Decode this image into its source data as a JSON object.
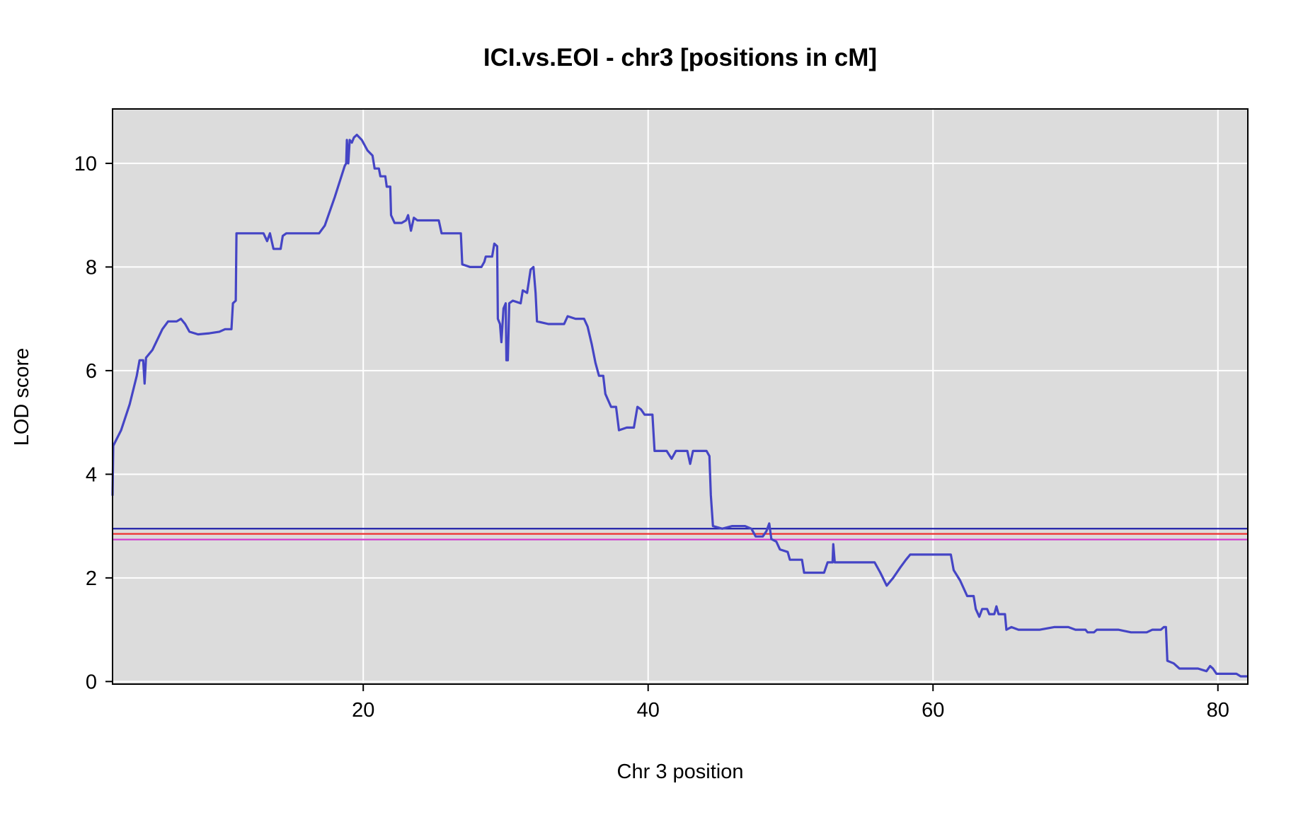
{
  "chart_data": {
    "type": "line",
    "title": "ICI.vs.EOI - chr3 [positions in cM]",
    "xlabel": "Chr 3 position",
    "ylabel": "LOD score",
    "xlim": [
      2.4,
      82.1
    ],
    "ylim": [
      -0.05,
      11.05
    ],
    "xticks": [
      20,
      40,
      60,
      80
    ],
    "yticks": [
      0,
      2,
      4,
      6,
      8,
      10
    ],
    "grid": true,
    "panel_bg": "#dcdcdc",
    "grid_color": "#ffffff",
    "series": [
      {
        "name": "LOD",
        "color": "#4545c5",
        "points": [
          [
            2.4,
            3.6
          ],
          [
            2.45,
            4.55
          ],
          [
            3.0,
            4.85
          ],
          [
            3.6,
            5.35
          ],
          [
            4.1,
            5.9
          ],
          [
            4.3,
            6.2
          ],
          [
            4.55,
            6.2
          ],
          [
            4.65,
            5.75
          ],
          [
            4.75,
            6.25
          ],
          [
            5.2,
            6.4
          ],
          [
            5.9,
            6.8
          ],
          [
            6.3,
            6.95
          ],
          [
            6.9,
            6.95
          ],
          [
            7.2,
            7.0
          ],
          [
            7.5,
            6.9
          ],
          [
            7.8,
            6.75
          ],
          [
            8.4,
            6.7
          ],
          [
            9.2,
            6.72
          ],
          [
            9.9,
            6.75
          ],
          [
            10.3,
            6.8
          ],
          [
            10.75,
            6.8
          ],
          [
            10.85,
            7.3
          ],
          [
            11.05,
            7.35
          ],
          [
            11.1,
            8.65
          ],
          [
            13.0,
            8.65
          ],
          [
            13.25,
            8.5
          ],
          [
            13.45,
            8.65
          ],
          [
            13.7,
            8.35
          ],
          [
            14.2,
            8.35
          ],
          [
            14.35,
            8.6
          ],
          [
            14.6,
            8.65
          ],
          [
            16.9,
            8.65
          ],
          [
            17.3,
            8.8
          ],
          [
            18.0,
            9.35
          ],
          [
            18.7,
            9.95
          ],
          [
            18.8,
            10.0
          ],
          [
            18.85,
            10.45
          ],
          [
            18.95,
            10.0
          ],
          [
            19.05,
            10.45
          ],
          [
            19.2,
            10.4
          ],
          [
            19.35,
            10.5
          ],
          [
            19.55,
            10.55
          ],
          [
            19.9,
            10.45
          ],
          [
            20.3,
            10.25
          ],
          [
            20.65,
            10.15
          ],
          [
            20.8,
            9.9
          ],
          [
            21.1,
            9.9
          ],
          [
            21.2,
            9.75
          ],
          [
            21.55,
            9.75
          ],
          [
            21.65,
            9.55
          ],
          [
            21.9,
            9.55
          ],
          [
            21.95,
            9.0
          ],
          [
            22.2,
            8.85
          ],
          [
            22.7,
            8.85
          ],
          [
            23.0,
            8.9
          ],
          [
            23.15,
            9.0
          ],
          [
            23.35,
            8.7
          ],
          [
            23.55,
            8.95
          ],
          [
            23.8,
            8.9
          ],
          [
            25.3,
            8.9
          ],
          [
            25.5,
            8.65
          ],
          [
            26.85,
            8.65
          ],
          [
            26.95,
            8.05
          ],
          [
            27.5,
            8.0
          ],
          [
            28.3,
            8.0
          ],
          [
            28.5,
            8.1
          ],
          [
            28.6,
            8.2
          ],
          [
            29.05,
            8.2
          ],
          [
            29.2,
            8.45
          ],
          [
            29.4,
            8.4
          ],
          [
            29.45,
            7.0
          ],
          [
            29.6,
            6.9
          ],
          [
            29.7,
            6.55
          ],
          [
            29.85,
            7.2
          ],
          [
            30.0,
            7.3
          ],
          [
            30.05,
            6.2
          ],
          [
            30.15,
            6.2
          ],
          [
            30.25,
            7.3
          ],
          [
            30.5,
            7.35
          ],
          [
            31.05,
            7.3
          ],
          [
            31.2,
            7.55
          ],
          [
            31.5,
            7.5
          ],
          [
            31.75,
            7.95
          ],
          [
            31.95,
            8.0
          ],
          [
            32.1,
            7.5
          ],
          [
            32.2,
            6.95
          ],
          [
            33.0,
            6.9
          ],
          [
            34.1,
            6.9
          ],
          [
            34.35,
            7.05
          ],
          [
            34.9,
            7.0
          ],
          [
            35.5,
            7.0
          ],
          [
            35.75,
            6.85
          ],
          [
            36.05,
            6.5
          ],
          [
            36.3,
            6.15
          ],
          [
            36.55,
            5.9
          ],
          [
            36.85,
            5.9
          ],
          [
            37.0,
            5.55
          ],
          [
            37.4,
            5.3
          ],
          [
            37.75,
            5.3
          ],
          [
            37.95,
            4.85
          ],
          [
            38.5,
            4.9
          ],
          [
            39.0,
            4.9
          ],
          [
            39.25,
            5.3
          ],
          [
            39.5,
            5.25
          ],
          [
            39.75,
            5.15
          ],
          [
            40.3,
            5.15
          ],
          [
            40.45,
            4.45
          ],
          [
            41.3,
            4.45
          ],
          [
            41.65,
            4.3
          ],
          [
            41.95,
            4.45
          ],
          [
            42.75,
            4.45
          ],
          [
            42.95,
            4.2
          ],
          [
            43.15,
            4.45
          ],
          [
            44.1,
            4.45
          ],
          [
            44.3,
            4.35
          ],
          [
            44.4,
            3.6
          ],
          [
            44.55,
            3.0
          ],
          [
            45.2,
            2.95
          ],
          [
            45.9,
            3.0
          ],
          [
            46.8,
            3.0
          ],
          [
            47.25,
            2.95
          ],
          [
            47.55,
            2.8
          ],
          [
            48.05,
            2.8
          ],
          [
            48.3,
            2.9
          ],
          [
            48.5,
            3.05
          ],
          [
            48.65,
            2.75
          ],
          [
            49.0,
            2.7
          ],
          [
            49.25,
            2.55
          ],
          [
            49.8,
            2.5
          ],
          [
            49.95,
            2.35
          ],
          [
            50.8,
            2.35
          ],
          [
            50.95,
            2.1
          ],
          [
            52.35,
            2.1
          ],
          [
            52.6,
            2.3
          ],
          [
            52.95,
            2.3
          ],
          [
            53.0,
            2.65
          ],
          [
            53.1,
            2.3
          ],
          [
            55.9,
            2.3
          ],
          [
            56.3,
            2.1
          ],
          [
            56.75,
            1.85
          ],
          [
            57.2,
            2.0
          ],
          [
            57.7,
            2.2
          ],
          [
            58.1,
            2.35
          ],
          [
            58.4,
            2.45
          ],
          [
            61.25,
            2.45
          ],
          [
            61.45,
            2.15
          ],
          [
            61.9,
            1.95
          ],
          [
            62.4,
            1.65
          ],
          [
            62.85,
            1.65
          ],
          [
            63.0,
            1.4
          ],
          [
            63.25,
            1.25
          ],
          [
            63.45,
            1.4
          ],
          [
            63.8,
            1.4
          ],
          [
            63.95,
            1.3
          ],
          [
            64.3,
            1.3
          ],
          [
            64.45,
            1.45
          ],
          [
            64.6,
            1.3
          ],
          [
            65.05,
            1.3
          ],
          [
            65.15,
            1.0
          ],
          [
            65.5,
            1.05
          ],
          [
            66.0,
            1.0
          ],
          [
            67.5,
            1.0
          ],
          [
            68.5,
            1.05
          ],
          [
            69.5,
            1.05
          ],
          [
            70.0,
            1.0
          ],
          [
            70.7,
            1.0
          ],
          [
            70.85,
            0.95
          ],
          [
            71.3,
            0.95
          ],
          [
            71.5,
            1.0
          ],
          [
            73.0,
            1.0
          ],
          [
            73.9,
            0.95
          ],
          [
            75.0,
            0.95
          ],
          [
            75.4,
            1.0
          ],
          [
            76.0,
            1.0
          ],
          [
            76.2,
            1.05
          ],
          [
            76.35,
            1.05
          ],
          [
            76.45,
            0.4
          ],
          [
            76.9,
            0.35
          ],
          [
            77.3,
            0.25
          ],
          [
            78.6,
            0.25
          ],
          [
            79.2,
            0.2
          ],
          [
            79.45,
            0.3
          ],
          [
            79.65,
            0.25
          ],
          [
            79.9,
            0.15
          ],
          [
            81.3,
            0.15
          ],
          [
            81.6,
            0.1
          ],
          [
            82.0,
            0.1
          ]
        ]
      }
    ],
    "threshold_lines": [
      {
        "name": "blue",
        "y": 2.95,
        "color": "#2222aa"
      },
      {
        "name": "red",
        "y": 2.85,
        "color": "#ee3030"
      },
      {
        "name": "magenta",
        "y": 2.74,
        "color": "#cf3fcf"
      }
    ]
  }
}
